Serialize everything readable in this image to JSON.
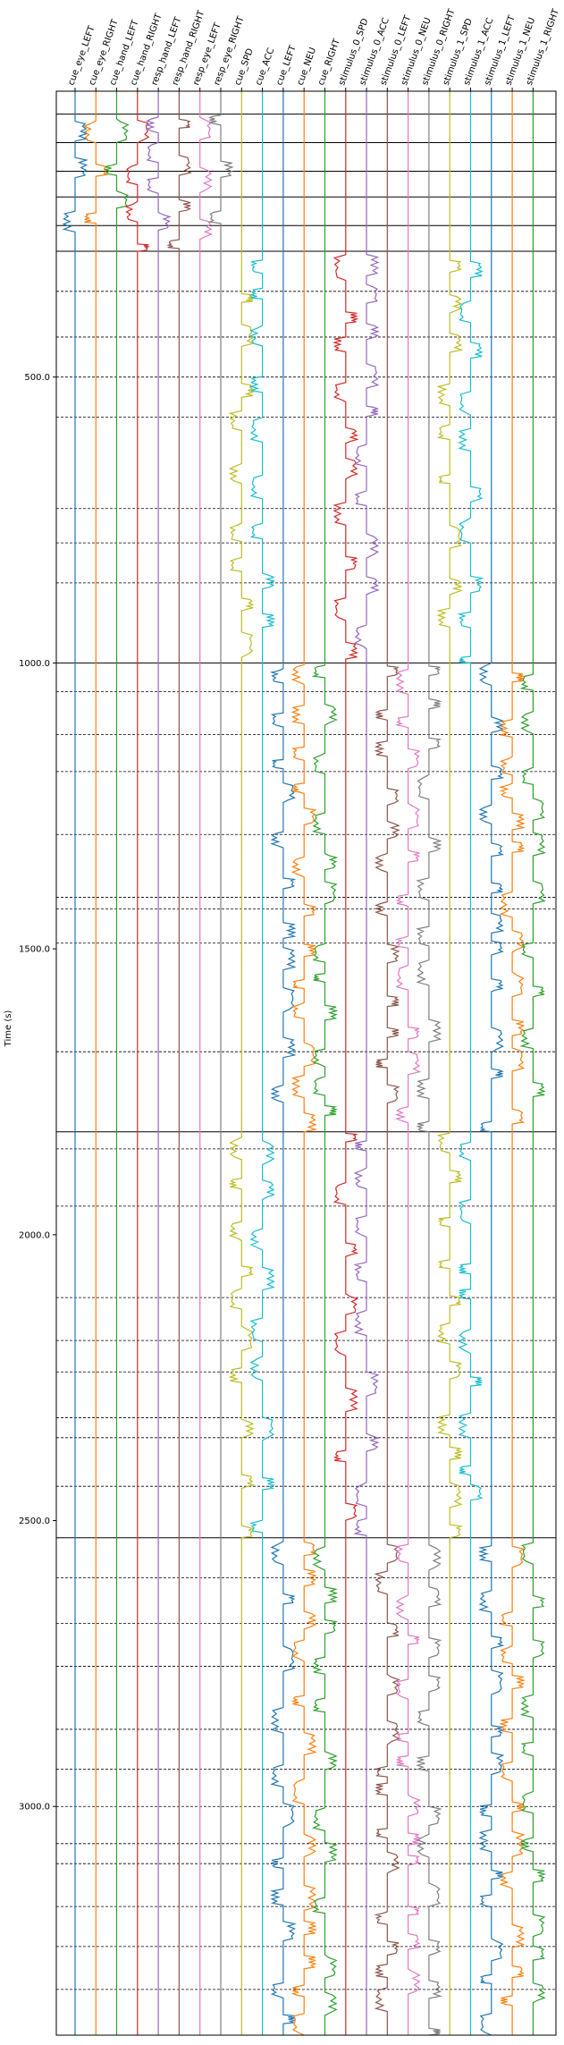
{
  "chart_data": {
    "type": "line",
    "title": "",
    "xlabel": "",
    "ylabel": "Time (s)",
    "ylim": [
      0,
      3400
    ],
    "y_inverted": true,
    "yticks": [
      500,
      1000,
      1500,
      2000,
      2500,
      3000
    ],
    "ytick_labels": [
      "500.0",
      "1000.0",
      "1500.0",
      "2000.0",
      "2500.0",
      "3000.0"
    ],
    "channels": [
      {
        "name": "cue_eye_LEFT",
        "color": "#1f77b4",
        "active": [
          [
            40,
            280
          ]
        ]
      },
      {
        "name": "cue_eye_RIGHT",
        "color": "#ff7f0e",
        "active": [
          [
            40,
            280
          ]
        ]
      },
      {
        "name": "cue_hand_LEFT",
        "color": "#2ca02c",
        "active": [
          [
            40,
            280
          ]
        ]
      },
      {
        "name": "cue_hand_RIGHT",
        "color": "#d62728",
        "active": [
          [
            40,
            280
          ]
        ]
      },
      {
        "name": "resp_hand_LEFT",
        "color": "#9467bd",
        "active": [
          [
            40,
            280
          ]
        ]
      },
      {
        "name": "resp_hand_RIGHT",
        "color": "#8c564b",
        "active": [
          [
            40,
            280
          ]
        ]
      },
      {
        "name": "resp_eye_LEFT",
        "color": "#e377c2",
        "active": [
          [
            40,
            280
          ]
        ]
      },
      {
        "name": "resp_eye_RIGHT",
        "color": "#7f7f7f",
        "active": [
          [
            40,
            280
          ]
        ]
      },
      {
        "name": "cue_SPD",
        "color": "#bcbd22",
        "active": [
          [
            340,
            1000
          ],
          [
            1820,
            2530
          ]
        ]
      },
      {
        "name": "cue_ACC",
        "color": "#17becf",
        "active": [
          [
            280,
            1000
          ],
          [
            1820,
            2530
          ]
        ]
      },
      {
        "name": "cue_LEFT",
        "color": "#1f77b4",
        "active": [
          [
            1000,
            1820
          ],
          [
            2530,
            3400
          ]
        ]
      },
      {
        "name": "cue_NEU",
        "color": "#ff7f0e",
        "active": [
          [
            1000,
            1820
          ],
          [
            2530,
            3400
          ]
        ]
      },
      {
        "name": "cue_RIGHT",
        "color": "#2ca02c",
        "active": [
          [
            1000,
            1820
          ],
          [
            2530,
            3400
          ]
        ]
      },
      {
        "name": "stimulus_0_SPD",
        "color": "#d62728",
        "active": [
          [
            280,
            1000
          ],
          [
            1820,
            2530
          ]
        ]
      },
      {
        "name": "stimulus_0_ACC",
        "color": "#9467bd",
        "active": [
          [
            280,
            1000
          ],
          [
            1820,
            2530
          ]
        ]
      },
      {
        "name": "stimulus_0_LEFT",
        "color": "#8c564b",
        "active": [
          [
            1000,
            1820
          ],
          [
            2530,
            3400
          ]
        ]
      },
      {
        "name": "stimulus_0_NEU",
        "color": "#e377c2",
        "active": [
          [
            1000,
            1820
          ],
          [
            2530,
            3400
          ]
        ]
      },
      {
        "name": "stimulus_0_RIGHT",
        "color": "#7f7f7f",
        "active": [
          [
            1000,
            1820
          ],
          [
            2530,
            3400
          ]
        ]
      },
      {
        "name": "stimulus_1_SPD",
        "color": "#bcbd22",
        "active": [
          [
            280,
            1000
          ],
          [
            1820,
            2530
          ]
        ]
      },
      {
        "name": "stimulus_1_ACC",
        "color": "#17becf",
        "active": [
          [
            280,
            1000
          ],
          [
            1820,
            2530
          ]
        ]
      },
      {
        "name": "stimulus_1_LEFT",
        "color": "#1f77b4",
        "active": [
          [
            1000,
            1820
          ],
          [
            2530,
            3400
          ]
        ]
      },
      {
        "name": "stimulus_1_NEU",
        "color": "#ff7f0e",
        "active": [
          [
            1000,
            1820
          ],
          [
            2530,
            3400
          ]
        ]
      },
      {
        "name": "stimulus_1_RIGHT",
        "color": "#2ca02c",
        "active": [
          [
            1000,
            1820
          ],
          [
            2530,
            3400
          ]
        ]
      }
    ],
    "solid_hlines": [
      40,
      90,
      140,
      185,
      235,
      280,
      1000,
      1820,
      2530
    ],
    "dashed_hlines": [
      350,
      430,
      500,
      570,
      730,
      790,
      860,
      1050,
      1125,
      1190,
      1300,
      1410,
      1430,
      1490,
      1680,
      1850,
      1950,
      2110,
      2185,
      2240,
      2320,
      2355,
      2440,
      2600,
      2680,
      2755,
      2865,
      2935,
      3000,
      3065,
      3100,
      3175,
      3245,
      3320
    ],
    "grid": false,
    "legend": "none"
  }
}
